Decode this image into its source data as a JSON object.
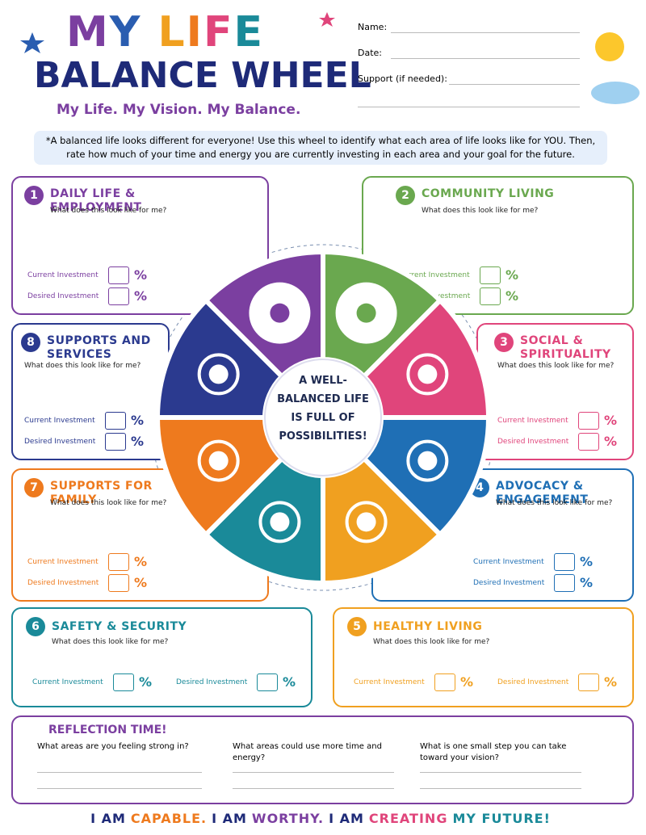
{
  "header": {
    "title_line1": "MY LIFE",
    "title_line2": "BALANCE WHEEL",
    "tagline": "My Life. My Vision. My Balance."
  },
  "form": {
    "name": "Name:",
    "date": "Date:",
    "support": "Support (if needed):"
  },
  "intro": "*A balanced life looks different for everyone! Use this wheel to identify what each area of life looks like for YOU. Then, rate how much of your time and energy you are currently investing in each area and your goal for the future.",
  "wheel": {
    "center_text": "A WELL-BALANCED LIFE IS FULL OF POSSIBILITIES!"
  },
  "sections": [
    {
      "number": "1",
      "title": "DAILY LIFE & EMPLOYMENT",
      "question": "What does this look like for me?",
      "current": "Current Investment",
      "desired": "Desired Investment",
      "percent": "%"
    },
    {
      "number": "2",
      "title": "COMMUNITY LIVING",
      "question": "What does this look like for me?",
      "current": "Current Investment",
      "desired": "Desired Investment",
      "percent": "%"
    },
    {
      "number": "3",
      "title": "SOCIAL & SPIRITUALITY",
      "question": "What does this look like for me?",
      "current": "Current Investment",
      "desired": "Desired Investment",
      "percent": "%"
    },
    {
      "number": "4",
      "title": "ADVOCACY & ENGAGEMENT",
      "question": "What does this look like for me?",
      "current": "Current Investment",
      "desired": "Desired Investment",
      "percent": "%"
    },
    {
      "number": "5",
      "title": "HEALTHY LIVING",
      "question": "What does this look like for me?",
      "current": "Current Investment",
      "desired": "Desired Investment",
      "percent": "%"
    },
    {
      "number": "6",
      "title": "SAFETY & SECURITY",
      "question": "What does this look like for me?",
      "current": "Current Investment",
      "desired": "Desired Investment",
      "percent": "%"
    },
    {
      "number": "7",
      "title": "SUPPORTS FOR FAMILY",
      "question": "What does this look like for me?",
      "current": "Current Investment",
      "desired": "Desired Investment",
      "percent": "%"
    },
    {
      "number": "8",
      "title": "SUPPORTS AND SERVICES",
      "question": "What does this look like for me?",
      "current": "Current Investment",
      "desired": "Desired Investment",
      "percent": "%"
    }
  ],
  "reflection": {
    "title": "REFLECTION TIME!",
    "questions": [
      "What areas are you feeling strong in?",
      "What areas could use more time and energy?",
      "What is one small step you can take toward your vision?"
    ]
  },
  "footer": [
    "I AM",
    "CAPABLE.",
    "I AM",
    "WORTHY.",
    "I AM",
    "CREATING",
    "MY FUTURE!"
  ]
}
